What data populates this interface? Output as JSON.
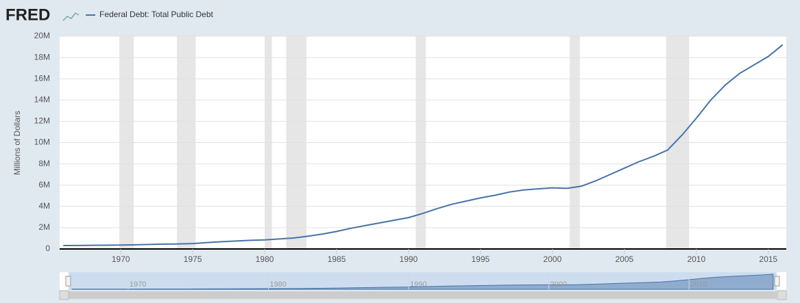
{
  "chart_data": {
    "type": "line",
    "logo": "FRED",
    "y_label": "Millions of Dollars",
    "x": [
      1966,
      1967,
      1968,
      1969,
      1970,
      1971,
      1972,
      1973,
      1974,
      1975,
      1976,
      1977,
      1978,
      1979,
      1980,
      1981,
      1982,
      1983,
      1984,
      1985,
      1986,
      1987,
      1988,
      1989,
      1990,
      1991,
      1992,
      1993,
      1994,
      1995,
      1996,
      1997,
      1998,
      1999,
      2000,
      2001,
      2002,
      2003,
      2004,
      2005,
      2006,
      2007,
      2008,
      2009,
      2010,
      2011,
      2012,
      2013,
      2014,
      2015,
      2016
    ],
    "series": [
      {
        "name": "Federal Debt: Total Public Debt",
        "color": "#4572a7",
        "values": [
          320000,
          330000,
          345000,
          355000,
          370000,
          390000,
          425000,
          455000,
          475000,
          510000,
          600000,
          680000,
          750000,
          810000,
          850000,
          940000,
          1030000,
          1200000,
          1400000,
          1650000,
          1950000,
          2200000,
          2450000,
          2700000,
          2950000,
          3350000,
          3800000,
          4200000,
          4500000,
          4800000,
          5050000,
          5350000,
          5550000,
          5650000,
          5750000,
          5700000,
          5900000,
          6400000,
          7000000,
          7600000,
          8200000,
          8700000,
          9300000,
          10700000,
          12300000,
          14000000,
          15400000,
          16500000,
          17300000,
          18100000,
          19200000
        ]
      }
    ],
    "xlim": [
      1965.75,
      2016.25
    ],
    "xticks": [
      1970,
      1975,
      1980,
      1985,
      1990,
      1995,
      2000,
      2005,
      2010,
      2015
    ],
    "ylim": [
      0,
      20000000
    ],
    "yticks": [
      0,
      {
        "value": 2000000,
        "label": "2M"
      },
      {
        "value": 4000000,
        "label": "4M"
      },
      {
        "value": 6000000,
        "label": "6M"
      },
      {
        "value": 8000000,
        "label": "8M"
      },
      {
        "value": 10000000,
        "label": "10M"
      },
      {
        "value": 12000000,
        "label": "12M"
      },
      {
        "value": 14000000,
        "label": "14M"
      },
      {
        "value": 16000000,
        "label": "16M"
      },
      {
        "value": 18000000,
        "label": "18M"
      },
      {
        "value": 20000000,
        "label": "20M"
      }
    ],
    "recessions": [
      [
        1969.9,
        1970.9
      ],
      [
        1973.9,
        1975.2
      ],
      [
        1980.0,
        1980.5
      ],
      [
        1981.5,
        1982.9
      ],
      [
        1990.5,
        1991.2
      ],
      [
        2001.2,
        2001.9
      ],
      [
        2007.9,
        2009.5
      ]
    ],
    "recession_color": "#e6e6e6",
    "navigator_xticks": [
      1970,
      1980,
      1990,
      2000,
      2010
    ],
    "grid": true
  }
}
